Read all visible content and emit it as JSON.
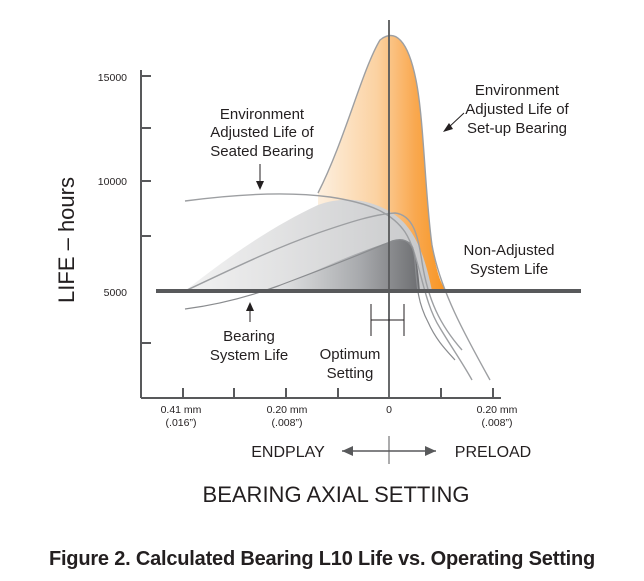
{
  "chart_data": {
    "type": "line",
    "title": "",
    "xlabel": "BEARING AXIAL SETTING",
    "ylabel": "LIFE – hours",
    "yticks": [
      "15000",
      "10000",
      "5000"
    ],
    "xticks": [
      {
        "mm": "0.41 mm",
        "in": "(.016”)"
      },
      {
        "mm": "0.20 mm",
        "in": "(.008”)"
      },
      {
        "mm": "0",
        "in": ""
      },
      {
        "mm": "0.20 mm",
        "in": "(.008”)"
      }
    ],
    "direction_labels": {
      "left": "ENDPLAY",
      "right": "PRELOAD"
    },
    "series": [
      {
        "name": "Environment Adjusted Life of Set-up Bearing",
        "x": [
          -0.08,
          0.02,
          0.05,
          0.1,
          0.14,
          0.17,
          0.19,
          0.23,
          0.28,
          0.32
        ],
        "y": [
          10100,
          13500,
          16000,
          17000,
          16600,
          13000,
          9000,
          6000,
          5000,
          4700
        ]
      },
      {
        "name": "Environment Adjusted Life of Seated Bearing",
        "x": [
          -0.41,
          -0.3,
          -0.2,
          -0.1,
          -0.05,
          0.0,
          0.05,
          0.1,
          0.13
        ],
        "y": [
          9100,
          9450,
          9550,
          9400,
          9000,
          8300,
          7200,
          5600,
          4600
        ]
      },
      {
        "name": "Non-Adjusted System Life",
        "x": [
          -0.41,
          -0.3,
          -0.2,
          -0.1,
          0.0,
          0.03,
          0.05,
          0.07,
          0.09
        ],
        "y": [
          4400,
          4550,
          5000,
          5900,
          7050,
          7450,
          7250,
          6200,
          4900
        ]
      },
      {
        "name": "Bearing System Life",
        "x": [
          -0.41,
          -0.3,
          -0.2,
          -0.1,
          0.0,
          0.03,
          0.05
        ],
        "y": [
          4400,
          4550,
          5000,
          5900,
          7050,
          7300,
          4900
        ]
      }
    ],
    "reference_line": {
      "y": 5000
    },
    "optimum_setting": {
      "x": 0.0
    },
    "annotations": {
      "set_up": [
        "Environment",
        "Adjusted Life of",
        "Set-up Bearing"
      ],
      "seated": [
        "Environment",
        "Adjusted Life of",
        "Seated Bearing"
      ],
      "non_adjusted": [
        "Non-Adjusted",
        "System Life"
      ],
      "bearing_system": [
        "Bearing",
        "System Life"
      ],
      "optimum": [
        "Optimum",
        "Setting"
      ]
    },
    "colors": {
      "orange": "#f7931e",
      "light_gray": "#dcdcdc",
      "mid_gray": "#a7a9ac",
      "dark_gray": "#7d7f83",
      "axis": "#58595b"
    },
    "grid": false
  },
  "caption": "Figure 2. Calculated Bearing L10 Life vs. Operating Setting"
}
